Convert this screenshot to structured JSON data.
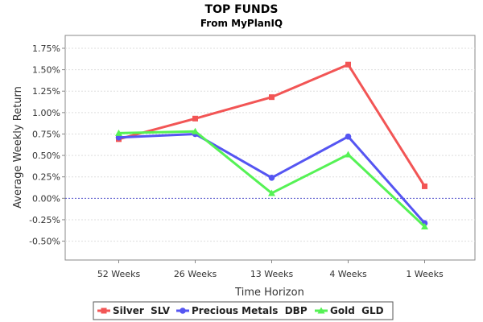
{
  "chart_data": {
    "type": "line",
    "title": "TOP FUNDS",
    "subtitle": "From MyPlanIQ",
    "xlabel": "Time Horizon",
    "ylabel": "Average Weekly Return",
    "categories": [
      "52 Weeks",
      "26 Weeks",
      "13 Weeks",
      "4 Weeks",
      "1 Weeks"
    ],
    "yticks": [
      "-0.50%",
      "-0.25%",
      "0.00%",
      "0.25%",
      "0.50%",
      "0.75%",
      "1.00%",
      "1.25%",
      "1.50%",
      "1.75%"
    ],
    "ylim": [
      -0.72,
      1.9
    ],
    "grid": true,
    "zero_line": true,
    "legend_position": "bottom",
    "series": [
      {
        "name": "Silver  SLV",
        "color": "#f25555",
        "marker": "square",
        "values": [
          0.69,
          0.93,
          1.18,
          1.56,
          0.14
        ]
      },
      {
        "name": "Precious Metals  DBP",
        "color": "#5555f2",
        "marker": "circle",
        "values": [
          0.71,
          0.75,
          0.24,
          0.72,
          -0.29
        ]
      },
      {
        "name": "Gold  GLD",
        "color": "#55f255",
        "marker": "triangle",
        "values": [
          0.76,
          0.78,
          0.06,
          0.51,
          -0.33
        ]
      }
    ]
  }
}
